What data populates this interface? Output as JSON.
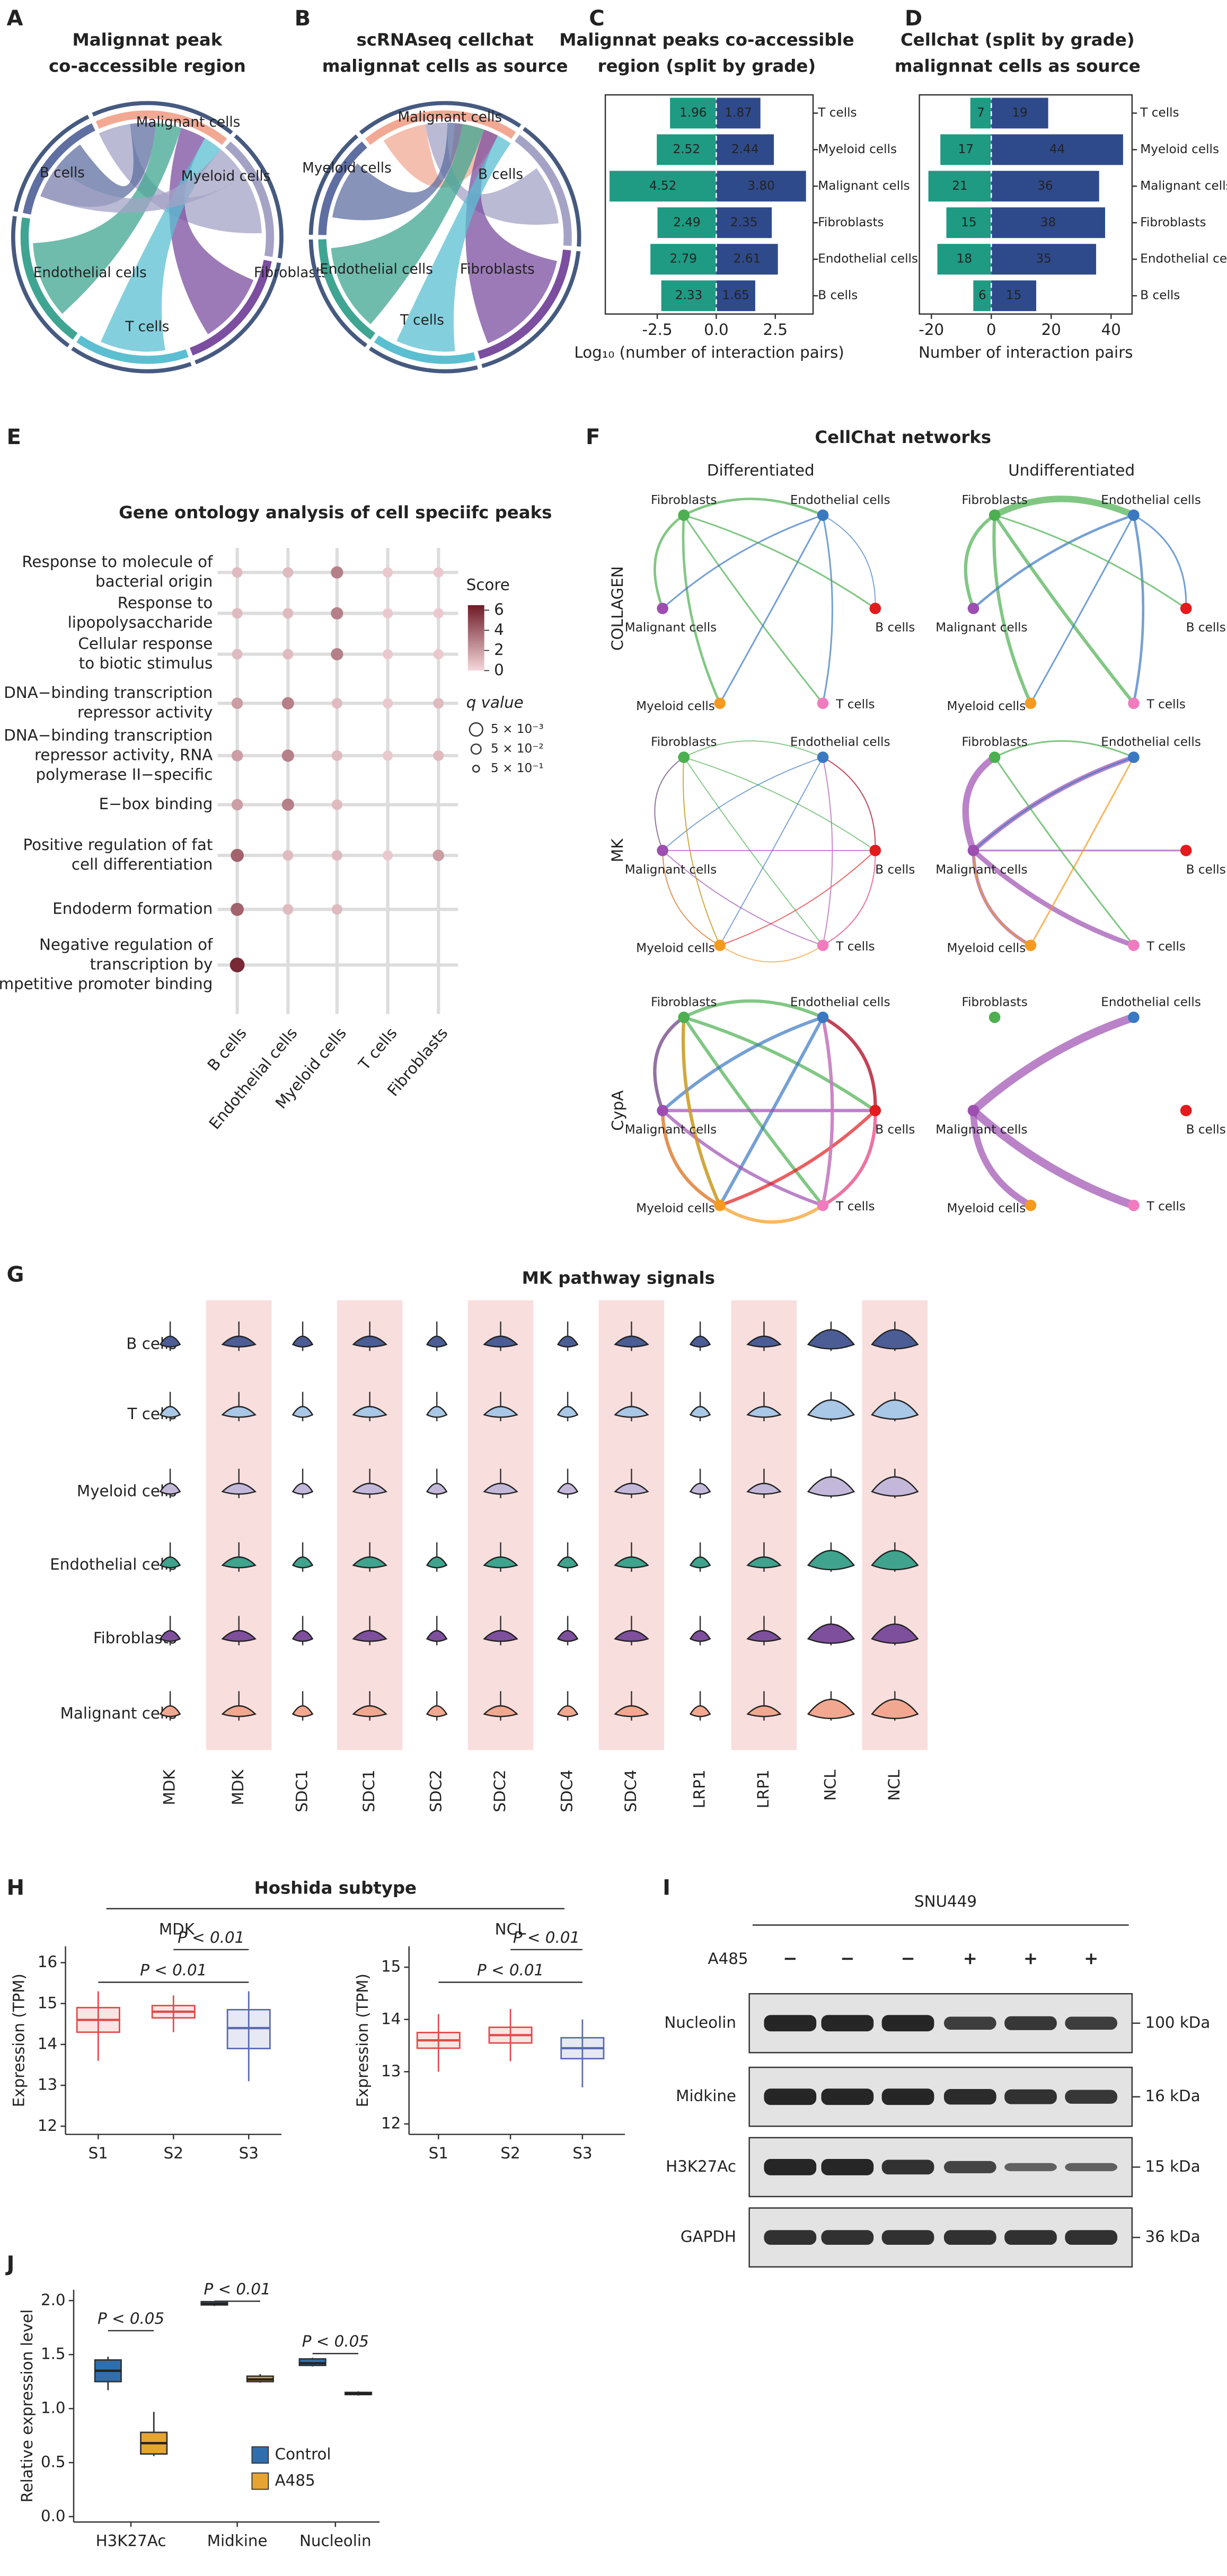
{
  "panels": {
    "A": {
      "letter": "A",
      "title": [
        "Malignnat peak",
        "co-accessible region"
      ],
      "labels": [
        "Malignant cells",
        "Myeloid cells",
        "B cells",
        "Endothelial cells",
        "Fibroblasts",
        "T cells"
      ]
    },
    "B": {
      "letter": "B",
      "title": [
        "scRNAseq cellchat",
        "malignnat cells as source"
      ],
      "labels": [
        "Malignant cells",
        "Myeloid cells",
        "B cells",
        "Endothelial cells",
        "Fibroblasts",
        "T cells"
      ]
    },
    "F": {
      "letter": "F",
      "title": "CellChat networks",
      "columns": [
        "Differentiated",
        "Undifferentiated"
      ],
      "rows": [
        "COLLAGEN",
        "MK",
        "CypA"
      ],
      "nodes": [
        "Fibroblasts",
        "Endothelial cells",
        "Malignant cells",
        "B cells",
        "Myeloid cells",
        "T cells"
      ]
    },
    "G": {
      "letter": "G",
      "title": "MK pathway signals",
      "rows": [
        "B cells",
        "T cells",
        "Myeloid cells",
        "Endothelial cells",
        "Fibroblasts",
        "Malignant cells"
      ],
      "columns": [
        "MDK",
        "MDK",
        "SDC1",
        "SDC1",
        "SDC2",
        "SDC2",
        "SDC4",
        "SDC4",
        "LRP1",
        "LRP1",
        "NCL",
        "NCL"
      ]
    },
    "H": {
      "letter": "H",
      "title": "Hoshida subtype"
    },
    "I": {
      "letter": "I",
      "title": "SNU449",
      "treatment": "A485",
      "lanes": [
        "−",
        "−",
        "−",
        "+",
        "+",
        "+"
      ],
      "proteins": [
        "Nucleolin",
        "Midkine",
        "H3K27Ac",
        "GAPDH"
      ],
      "sizes": [
        "100 kDa",
        "16 kDa",
        "15 kDa",
        "36 kDa"
      ]
    }
  },
  "chart_data": [
    {
      "panel": "C",
      "type": "bar",
      "title": [
        "Malignnat peaks co-accessible",
        "region (split by grade)"
      ],
      "categories": [
        "T cells",
        "Myeloid cells",
        "Malignant cells",
        "Fibroblasts",
        "Endothelial cells",
        "B cells"
      ],
      "series": [
        {
          "color": "#1f9a83",
          "values": [
            -1.96,
            -2.52,
            -4.52,
            -2.49,
            -2.79,
            -2.33
          ],
          "value_labels": [
            "1.96",
            "2.52",
            "4.52",
            "2.49",
            "2.79",
            "2.33"
          ]
        },
        {
          "color": "#2f4a8a",
          "values": [
            1.87,
            2.44,
            3.8,
            2.35,
            2.61,
            1.65
          ],
          "value_labels": [
            "1.87",
            "2.44",
            "3.80",
            "2.35",
            "2.61",
            "1.65"
          ]
        }
      ],
      "xlim": [
        -4.7,
        4.1
      ],
      "xticks": [
        -2.5,
        {
          "value": 0,
          "label": "0.0"
        },
        2.5
      ],
      "x_label": "Log₁₀ (number of interaction pairs)"
    },
    {
      "panel": "D",
      "type": "bar",
      "title": [
        "Cellchat (split by grade)",
        "malignnat cells as source"
      ],
      "categories": [
        "T cells",
        "Myeloid cells",
        "Malignant cells",
        "Fibroblasts",
        "Endothelial cells",
        "B cells"
      ],
      "series": [
        {
          "color": "#1f9a83",
          "values": [
            -7,
            -17,
            -21,
            -15,
            -18,
            -6
          ],
          "value_labels": [
            "7",
            "17",
            "21",
            "15",
            "18",
            "6"
          ]
        },
        {
          "color": "#2f4a8a",
          "values": [
            19,
            44,
            36,
            38,
            35,
            15
          ],
          "value_labels": [
            "19",
            "44",
            "36",
            "38",
            "35",
            "15"
          ]
        }
      ],
      "xlim": [
        -24,
        47
      ],
      "xticks": [
        -20,
        0,
        20,
        40
      ],
      "x_label": "Number of interaction pairs"
    },
    {
      "panel": "E",
      "type": "dot",
      "title": "Gene ontology analysis of cell speciifc peaks",
      "categories": [
        "B cells",
        "Endothelial cells",
        "Myeloid cells",
        "T cells",
        "Fibroblasts"
      ],
      "rows": [
        {
          "label": [
            "Response to molecule of",
            "bacterial origin"
          ],
          "values": [
            1,
            1,
            3,
            0.5,
            0.5
          ]
        },
        {
          "label": [
            "Response to",
            "lipopolysaccharide"
          ],
          "values": [
            1,
            1,
            3,
            0.5,
            0.5
          ]
        },
        {
          "label": [
            "Cellular response",
            "to biotic stimulus"
          ],
          "values": [
            1,
            1,
            3,
            0.5,
            0.5
          ]
        },
        {
          "label": [
            "DNA−binding transcription",
            "repressor activity"
          ],
          "values": [
            2,
            3,
            1,
            0.5,
            1
          ]
        },
        {
          "label": [
            "DNA−binding transcription",
            "repressor activity, RNA",
            "polymerase II−specific"
          ],
          "values": [
            2,
            3,
            1,
            0.5,
            1
          ]
        },
        {
          "label": [
            "E−box binding"
          ],
          "values": [
            2,
            3,
            1,
            null,
            null
          ]
        },
        {
          "label": [
            "Positive regulation of fat",
            "cell differentiation"
          ],
          "values": [
            4,
            1,
            1,
            0.5,
            2
          ]
        },
        {
          "label": [
            "Endoderm formation"
          ],
          "values": [
            4,
            1,
            1,
            null,
            null
          ]
        },
        {
          "label": [
            "Negative regulation of",
            "transcription by",
            "competitive promoter binding"
          ],
          "values": [
            6,
            null,
            null,
            null,
            null
          ]
        }
      ],
      "colorbar": {
        "label": "Score",
        "lim": [
          0,
          6.5
        ],
        "ticks": [
          0,
          2,
          4,
          6
        ]
      },
      "size_legend": {
        "label": "q value",
        "labels": [
          "5 × 10⁻³",
          "5 × 10⁻²",
          "5 × 10⁻¹"
        ]
      }
    },
    {
      "type": "box",
      "title": "MDK",
      "categories": [
        "S1",
        "S2",
        "S3"
      ],
      "y_label": "Expression (TPM)",
      "series": [
        {
          "color": [
            "#e04a4a",
            "#e04a4a",
            "#5a6ab0"
          ],
          "median": [
            14.6,
            14.8,
            14.4
          ],
          "q1": [
            14.3,
            14.65,
            13.9
          ],
          "q3": [
            14.9,
            14.95,
            14.85
          ],
          "whisker_low": [
            13.6,
            14.3,
            13.1
          ],
          "whisker_high": [
            15.3,
            15.2,
            15.3
          ]
        }
      ],
      "ylim": [
        11.8,
        16.4
      ],
      "yticks": [
        12,
        13,
        14,
        15,
        16
      ],
      "annotations": [
        "P < 0.01",
        "P < 0.01"
      ]
    },
    {
      "type": "box",
      "title": "NCL",
      "categories": [
        "S1",
        "S2",
        "S3"
      ],
      "y_label": "Expression (TPM)",
      "series": [
        {
          "color": [
            "#e04a4a",
            "#e04a4a",
            "#5a6ab0"
          ],
          "median": [
            13.6,
            13.7,
            13.45
          ],
          "q1": [
            13.45,
            13.55,
            13.25
          ],
          "q3": [
            13.75,
            13.85,
            13.65
          ],
          "whisker_low": [
            13.0,
            13.2,
            12.7
          ],
          "whisker_high": [
            14.1,
            14.2,
            14.0
          ]
        }
      ],
      "ylim": [
        11.8,
        15.4
      ],
      "yticks": [
        12,
        13,
        14,
        15
      ],
      "annotations": [
        "P < 0.01",
        "P < 0.01"
      ]
    },
    {
      "panel": "J",
      "type": "box",
      "categories": [
        "H3K27Ac",
        "Midkine",
        "Nucleolin"
      ],
      "y_label": "Relative expression level",
      "series": [
        {
          "name": "Control",
          "color": "#2f6fae",
          "median": [
            1.35,
            1.97,
            1.42
          ],
          "q1": [
            1.25,
            1.96,
            1.4
          ],
          "q3": [
            1.45,
            1.99,
            1.46
          ],
          "whisker_low": [
            1.17,
            1.95,
            1.39
          ],
          "whisker_high": [
            1.48,
            1.99,
            1.47
          ]
        },
        {
          "name": "A485",
          "color": "#e6a532",
          "median": [
            0.68,
            1.27,
            1.14
          ],
          "q1": [
            0.58,
            1.25,
            1.13
          ],
          "q3": [
            0.78,
            1.3,
            1.15
          ],
          "whisker_low": [
            0.56,
            1.24,
            1.12
          ],
          "whisker_high": [
            0.97,
            1.32,
            1.16
          ]
        }
      ],
      "ylim": [
        -0.05,
        2.1
      ],
      "yticks": [
        {
          "value": 0,
          "label": "0.0"
        },
        0.5,
        {
          "value": 1,
          "label": "1.0"
        },
        1.5,
        {
          "value": 2,
          "label": "2.0"
        }
      ],
      "annotations": [
        "P < 0.05",
        "P < 0.01",
        "P < 0.05"
      ],
      "legend": "bottom-right"
    }
  ]
}
